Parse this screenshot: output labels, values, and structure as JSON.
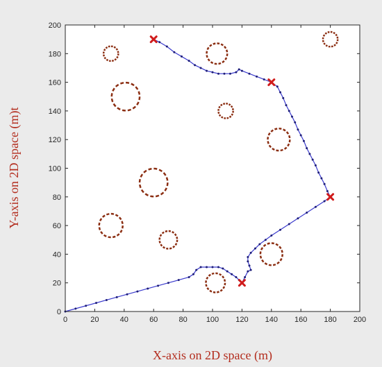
{
  "chart_data": {
    "type": "scatter",
    "title": "",
    "xlabel": "X-axis on 2D space (m)",
    "ylabel": "Y-axis on 2D space (m)t",
    "xlim": [
      0,
      200
    ],
    "ylim": [
      0,
      200
    ],
    "x_ticks": [
      "0",
      "20",
      "40",
      "60",
      "80",
      "100",
      "120",
      "140",
      "160",
      "180",
      "200"
    ],
    "y_ticks": [
      "0",
      "20",
      "40",
      "60",
      "80",
      "100",
      "120",
      "140",
      "160",
      "180",
      "200"
    ],
    "grid": false,
    "colors": {
      "figure_background": "#ebebeb",
      "axes_background": "#ffffff",
      "path": "#3a3acd",
      "path_markers": "#1e1e78",
      "waypoints": "#d01c1c",
      "obstacles": "#8b2e12",
      "axis_title": "#b32d1e"
    },
    "obstacles": [
      {
        "x": 31,
        "y": 180,
        "r": 5
      },
      {
        "x": 103,
        "y": 180,
        "r": 7
      },
      {
        "x": 180,
        "y": 190,
        "r": 5
      },
      {
        "x": 41,
        "y": 150,
        "r": 9.5
      },
      {
        "x": 109,
        "y": 140,
        "r": 5
      },
      {
        "x": 145,
        "y": 120,
        "r": 7.5
      },
      {
        "x": 60,
        "y": 90,
        "r": 9.5
      },
      {
        "x": 31,
        "y": 60,
        "r": 8
      },
      {
        "x": 70,
        "y": 50,
        "r": 6
      },
      {
        "x": 140,
        "y": 40,
        "r": 7.5
      },
      {
        "x": 102,
        "y": 20,
        "r": 6.5
      }
    ],
    "waypoints": [
      {
        "x": 60,
        "y": 190
      },
      {
        "x": 140,
        "y": 160
      },
      {
        "x": 180,
        "y": 80
      },
      {
        "x": 120,
        "y": 20
      }
    ],
    "path": [
      [
        0,
        0
      ],
      [
        7,
        2
      ],
      [
        14,
        4
      ],
      [
        21,
        6
      ],
      [
        28,
        8
      ],
      [
        35,
        10
      ],
      [
        42,
        12
      ],
      [
        49,
        14
      ],
      [
        56,
        16
      ],
      [
        63,
        18
      ],
      [
        70,
        20
      ],
      [
        77,
        22
      ],
      [
        84,
        24
      ],
      [
        87,
        26
      ],
      [
        89,
        29
      ],
      [
        92,
        31
      ],
      [
        96,
        31
      ],
      [
        100,
        31
      ],
      [
        104,
        31
      ],
      [
        107,
        30
      ],
      [
        110,
        28
      ],
      [
        113,
        26
      ],
      [
        116,
        24
      ],
      [
        118,
        22
      ],
      [
        120,
        20
      ],
      [
        122,
        24
      ],
      [
        124,
        28
      ],
      [
        126,
        29
      ],
      [
        125,
        32
      ],
      [
        124,
        35
      ],
      [
        124,
        38
      ],
      [
        126,
        41
      ],
      [
        129,
        44
      ],
      [
        132,
        47
      ],
      [
        136,
        50
      ],
      [
        140,
        53
      ],
      [
        146,
        57
      ],
      [
        152,
        61
      ],
      [
        158,
        65
      ],
      [
        164,
        69
      ],
      [
        170,
        73
      ],
      [
        176,
        77
      ],
      [
        180,
        80
      ],
      [
        178,
        84
      ],
      [
        176,
        89
      ],
      [
        174,
        93
      ],
      [
        172,
        97
      ],
      [
        170,
        102
      ],
      [
        168,
        106
      ],
      [
        166,
        110
      ],
      [
        164,
        114
      ],
      [
        162,
        119
      ],
      [
        160,
        123
      ],
      [
        158,
        127
      ],
      [
        156,
        132
      ],
      [
        154,
        136
      ],
      [
        152,
        140
      ],
      [
        150,
        144
      ],
      [
        148,
        149
      ],
      [
        146,
        153
      ],
      [
        144,
        157
      ],
      [
        140,
        160
      ],
      [
        135,
        162
      ],
      [
        130,
        164
      ],
      [
        125,
        166
      ],
      [
        120,
        168
      ],
      [
        118,
        169
      ],
      [
        116,
        167
      ],
      [
        112,
        166
      ],
      [
        108,
        166
      ],
      [
        104,
        166
      ],
      [
        100,
        167
      ],
      [
        96,
        168
      ],
      [
        92,
        170
      ],
      [
        88,
        172
      ],
      [
        84,
        175
      ],
      [
        79,
        178
      ],
      [
        74,
        181
      ],
      [
        69,
        185
      ],
      [
        64,
        188
      ],
      [
        60,
        190
      ]
    ]
  }
}
